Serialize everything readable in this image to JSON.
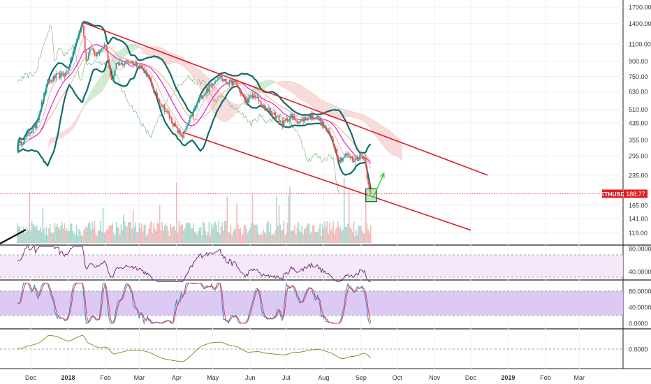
{
  "chart_data": {
    "type": "candlestick",
    "symbol_tag": "ETHUSD",
    "last_price_label": "188.77",
    "last_price": 188.77,
    "price_axis": {
      "scale": "log",
      "ticks": [
        1700,
        1400,
        1100,
        900,
        750,
        630,
        510,
        435,
        355,
        295,
        235,
        188.77,
        165,
        141,
        119
      ],
      "tick_labels": [
        "1700.00",
        "1400.00",
        "1100.00",
        "900.00",
        "750.00",
        "630.00",
        "510.00",
        "435.00",
        "355.00",
        "295.00",
        "235.00",
        "",
        "165.00",
        "141.00",
        "119.00"
      ]
    },
    "time_axis": {
      "labels": [
        "Dec",
        "2018",
        "Feb",
        "Mar",
        "Apr",
        "May",
        "Jun",
        "Jul",
        "Aug",
        "Sep",
        "Oct",
        "Nov",
        "Dec",
        "2019",
        "Feb",
        "Mar"
      ],
      "dates": [
        "2017-12",
        "2018-01",
        "2018-02",
        "2018-03",
        "2018-04",
        "2018-05",
        "2018-06",
        "2018-07",
        "2018-08",
        "2018-09",
        "2018-10",
        "2018-11",
        "2018-12",
        "2019-01",
        "2019-02",
        "2019-03"
      ]
    },
    "price_anchors": [
      [
        "2017-11-20",
        330
      ],
      [
        "2017-12-05",
        420
      ],
      [
        "2017-12-15",
        700
      ],
      [
        "2017-12-22",
        750
      ],
      [
        "2017-12-31",
        780
      ],
      [
        "2018-01-07",
        1100
      ],
      [
        "2018-01-13",
        1400
      ],
      [
        "2018-01-16",
        900
      ],
      [
        "2018-01-20",
        1050
      ],
      [
        "2018-01-24",
        980
      ],
      [
        "2018-02-01",
        1100
      ],
      [
        "2018-02-06",
        700
      ],
      [
        "2018-02-10",
        850
      ],
      [
        "2018-02-20",
        900
      ],
      [
        "2018-03-01",
        860
      ],
      [
        "2018-03-07",
        780
      ],
      [
        "2018-03-15",
        600
      ],
      [
        "2018-03-25",
        480
      ],
      [
        "2018-04-01",
        400
      ],
      [
        "2018-04-06",
        370
      ],
      [
        "2018-04-12",
        450
      ],
      [
        "2018-04-20",
        580
      ],
      [
        "2018-04-28",
        660
      ],
      [
        "2018-05-06",
        760
      ],
      [
        "2018-05-12",
        700
      ],
      [
        "2018-05-20",
        700
      ],
      [
        "2018-05-28",
        560
      ],
      [
        "2018-06-05",
        600
      ],
      [
        "2018-06-12",
        520
      ],
      [
        "2018-06-20",
        490
      ],
      [
        "2018-06-28",
        430
      ],
      [
        "2018-07-05",
        470
      ],
      [
        "2018-07-12",
        440
      ],
      [
        "2018-07-20",
        470
      ],
      [
        "2018-07-26",
        470
      ],
      [
        "2018-08-02",
        410
      ],
      [
        "2018-08-08",
        360
      ],
      [
        "2018-08-14",
        280
      ],
      [
        "2018-08-20",
        300
      ],
      [
        "2018-08-26",
        280
      ],
      [
        "2018-09-01",
        295
      ],
      [
        "2018-09-04",
        290
      ],
      [
        "2018-09-06",
        230
      ],
      [
        "2018-09-09",
        188.77
      ]
    ],
    "channel": {
      "upper": {
        "from": [
          "2018-01-13",
          1420
        ],
        "to": [
          "2018-12-15",
          235
        ]
      },
      "lower": {
        "from": [
          "2018-04-06",
          390
        ],
        "to": [
          "2018-12-01",
          123
        ]
      },
      "color": "#e01e24"
    },
    "target_arrow": {
      "from": [
        "2018-09-11",
        180
      ],
      "to": [
        "2018-09-20",
        240
      ],
      "color": "#33cc33"
    },
    "support_box": {
      "from": [
        "2018-09-05",
        172
      ],
      "to": [
        "2018-09-14",
        200
      ],
      "color": "#33cc33"
    },
    "indicators": [
      {
        "name": "RSI",
        "scale_labels": [
          "80.0000",
          "40.0000"
        ]
      },
      {
        "name": "Stochastic RSI",
        "scale_labels": [
          "80.0000",
          "40.0000",
          "0.0000"
        ]
      },
      {
        "name": "Oscillator",
        "scale_labels": [
          "0.0000"
        ]
      }
    ],
    "colors": {
      "up_candle": "#26a69a",
      "down_candle": "#ef5350",
      "bollinger": "#0f6b6b",
      "ma": "#e020d0",
      "cloud_bull": "#b6ddb6",
      "cloud_bear": "#f4c4c4",
      "rsi": "#6a1b7a",
      "stoch_k": "#3d7ed0",
      "stoch_d": "#e04040",
      "oscillator": "#5a9a20",
      "volume_up": "#8fd0c0",
      "volume_down": "#f2a7a7"
    }
  }
}
